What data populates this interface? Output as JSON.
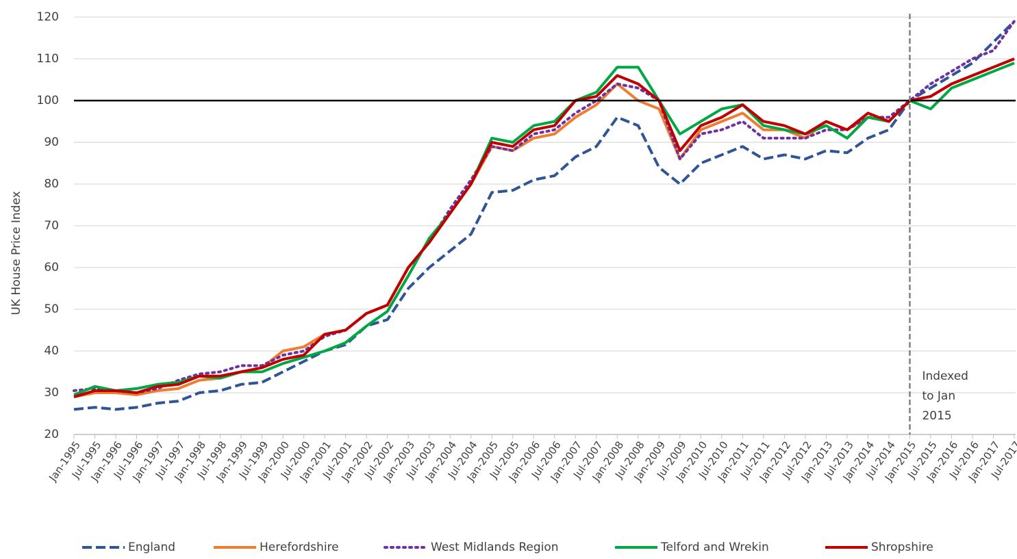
{
  "chart_data": {
    "type": "line",
    "y_label": "UK House Price Index",
    "categories": [
      "Jan-1995",
      "Jul-1995",
      "Jan-1996",
      "Jul-1996",
      "Jan-1997",
      "Jul-1997",
      "Jan-1998",
      "Jul-1998",
      "Jan-1999",
      "Jul-1999",
      "Jan-2000",
      "Jul-2000",
      "Jan-2001",
      "Jul-2001",
      "Jan-2002",
      "Jul-2002",
      "Jan-2003",
      "Jul-2003",
      "Jan-2004",
      "Jul-2004",
      "Jan-2005",
      "Jul-2005",
      "Jan-2006",
      "Jul-2006",
      "Jan-2007",
      "Jul-2007",
      "Jan-2008",
      "Jul-2008",
      "Jan-2009",
      "Jul-2009",
      "Jan-2010",
      "Jul-2010",
      "Jan-2011",
      "Jul-2011",
      "Jan-2012",
      "Jul-2012",
      "Jan-2013",
      "Jul-2013",
      "Jan-2014",
      "Jul-2014",
      "Jan-2015",
      "Jul-2015",
      "Jan-2016",
      "Jul-2016",
      "Jan-2017",
      "Jul-2017"
    ],
    "series": [
      {
        "name": "England",
        "color": "#2f5597",
        "line_style": "dashed",
        "values": [
          26,
          26.5,
          26,
          26.5,
          27.5,
          28,
          30,
          30.5,
          32,
          32.5,
          35,
          37.5,
          40,
          41.5,
          46,
          47.5,
          55,
          60,
          64,
          68,
          78,
          78.5,
          81,
          82,
          86.5,
          89,
          96,
          94,
          84,
          80,
          85,
          87,
          89,
          86,
          87,
          86,
          88,
          87.5,
          91,
          93,
          100,
          103,
          106,
          109,
          114,
          119
        ]
      },
      {
        "name": "Herefordshire",
        "color": "#ed7d31",
        "line_style": "solid",
        "values": [
          29,
          30,
          30,
          29.5,
          30.5,
          31,
          33,
          33.5,
          35,
          36,
          40,
          41,
          44,
          45,
          49,
          51,
          60,
          66,
          73,
          80,
          89,
          88,
          91,
          92,
          96,
          99,
          104,
          100,
          98,
          86,
          93,
          95,
          97,
          93,
          93,
          91,
          95,
          93,
          96,
          95,
          100,
          101,
          104,
          106,
          108,
          110
        ]
      },
      {
        "name": "West Midlands Region",
        "color": "#7030a0",
        "line_style": "dotted",
        "values": [
          30.5,
          31,
          30.5,
          30,
          31,
          33,
          34.5,
          35,
          36.5,
          36.5,
          39,
          40,
          43.5,
          45,
          49,
          51,
          60,
          66,
          74,
          81,
          89,
          88,
          92,
          93,
          97,
          100,
          104,
          103,
          100,
          86,
          92,
          93,
          95,
          91,
          91,
          91,
          93,
          93,
          96,
          96,
          100,
          104,
          107,
          110,
          112,
          119
        ]
      },
      {
        "name": "Telford and Wrekin",
        "color": "#00a844",
        "line_style": "solid",
        "values": [
          29.5,
          31.5,
          30.5,
          31,
          32,
          32.5,
          34,
          33.5,
          35,
          35,
          37,
          38.5,
          40,
          42,
          46,
          49.5,
          58,
          67,
          73,
          80,
          91,
          90,
          94,
          95,
          100,
          102,
          108,
          108,
          100,
          92,
          95,
          98,
          99,
          94,
          93,
          92,
          94,
          91,
          96,
          95,
          100,
          98,
          103,
          105,
          107,
          109
        ]
      },
      {
        "name": "Shropshire",
        "color": "#c00000",
        "line_style": "solid",
        "values": [
          29,
          30.5,
          30.5,
          30,
          31.5,
          32,
          34,
          34,
          35,
          36,
          38,
          39,
          44,
          45,
          49,
          51,
          60,
          66,
          73,
          80,
          90,
          89,
          93,
          94,
          100,
          101,
          106,
          104,
          100,
          88,
          94,
          96,
          99,
          95,
          94,
          92,
          95,
          93,
          97,
          95,
          100,
          101,
          104,
          106,
          108,
          110
        ]
      }
    ],
    "ylim": [
      20,
      120
    ],
    "yticks": [
      20,
      30,
      40,
      50,
      60,
      70,
      80,
      90,
      100,
      110,
      120
    ],
    "grid": true,
    "hline": 100,
    "vline": "Jan-2015",
    "annotation": [
      "Indexed",
      "to Jan",
      "2015"
    ],
    "legend": "bottom"
  }
}
